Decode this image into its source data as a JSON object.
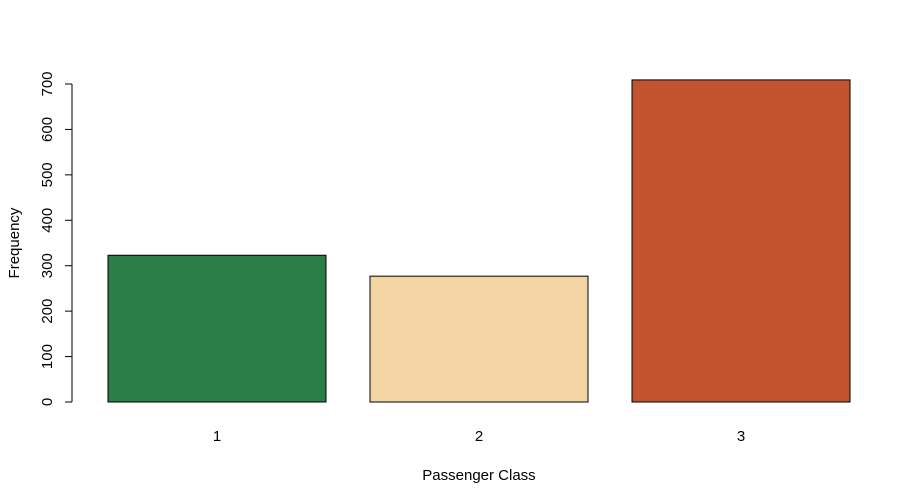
{
  "chart_data": {
    "type": "bar",
    "title": "",
    "xlabel": "Passenger Class",
    "ylabel": "Frequency",
    "categories": [
      "1",
      "2",
      "3"
    ],
    "values": [
      323,
      277,
      709
    ],
    "colors": [
      "#2a7e47",
      "#f2d5a2",
      "#c1542e"
    ],
    "ylim": [
      0,
      700
    ],
    "yticks": [
      0,
      100,
      200,
      300,
      400,
      500,
      600,
      700
    ],
    "grid": false,
    "legend": "none"
  }
}
